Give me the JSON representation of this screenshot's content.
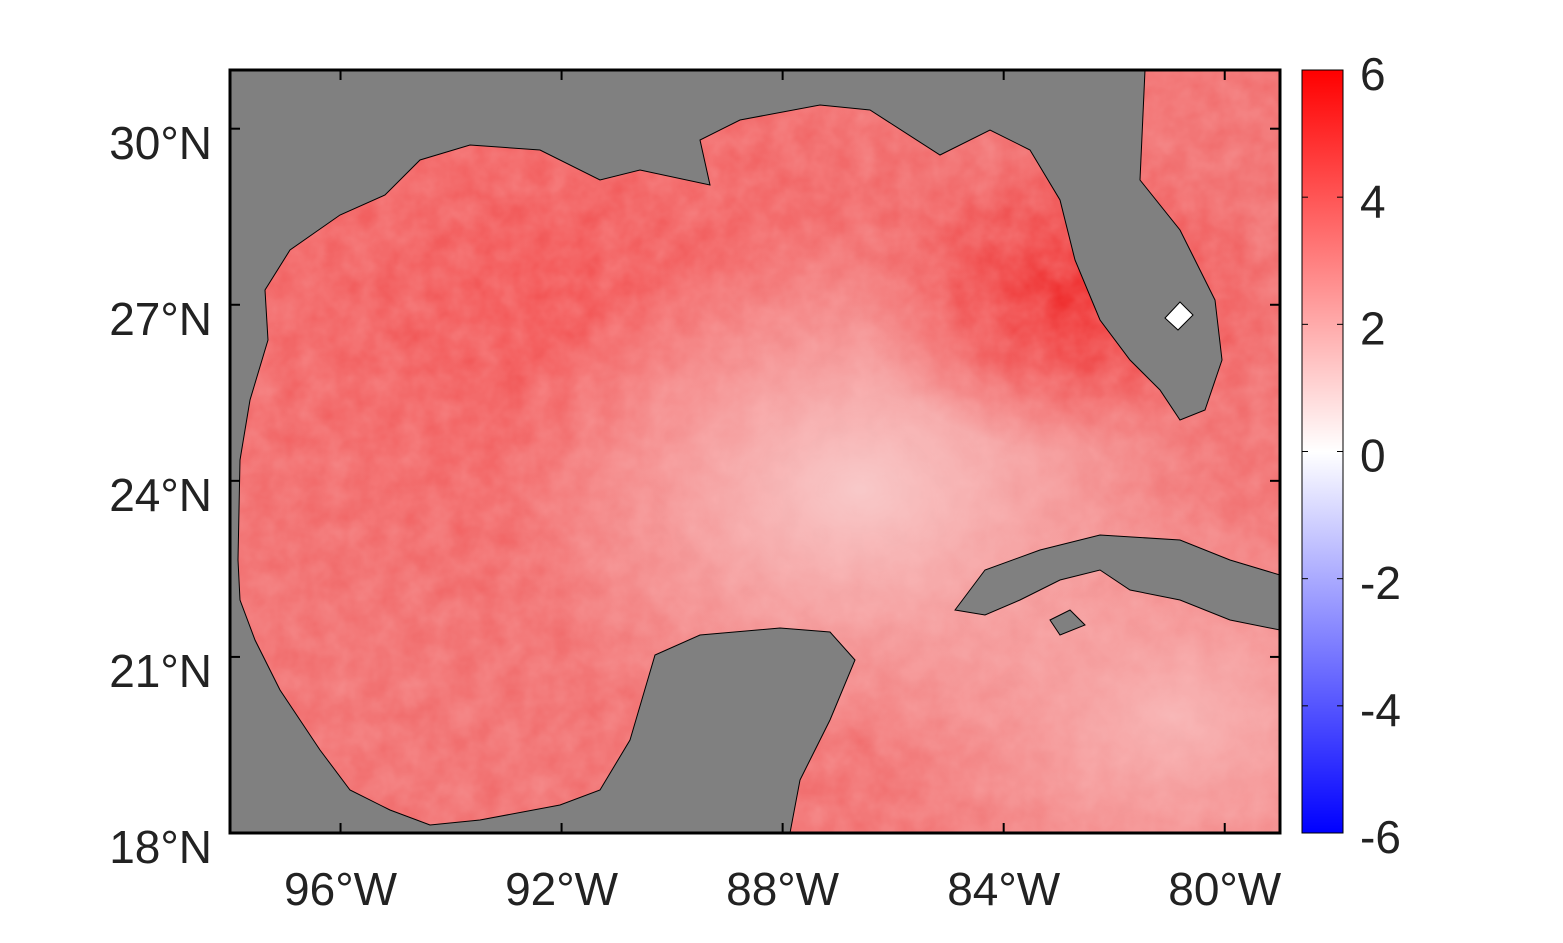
{
  "map": {
    "lon_range": [
      -98,
      -79
    ],
    "lat_range": [
      18,
      31
    ],
    "lon_ticks": [
      {
        "value": -96,
        "label": "96°W"
      },
      {
        "value": -92,
        "label": "92°W"
      },
      {
        "value": -88,
        "label": "88°W"
      },
      {
        "value": -84,
        "label": "84°W"
      },
      {
        "value": -80,
        "label": "80°W"
      }
    ],
    "lat_ticks": [
      {
        "value": 18,
        "label": "18°N"
      },
      {
        "value": 21,
        "label": "21°N"
      },
      {
        "value": 24,
        "label": "24°N"
      },
      {
        "value": 27,
        "label": "27°N"
      },
      {
        "value": 30,
        "label": "30°N"
      }
    ],
    "land_color": "#808080",
    "colorbar": {
      "range": [
        -6,
        6
      ],
      "ticks": [
        -6,
        -4,
        -2,
        0,
        2,
        4,
        6
      ],
      "colors": [
        "#0000ff",
        "#ffffff",
        "#ff0000"
      ]
    }
  }
}
